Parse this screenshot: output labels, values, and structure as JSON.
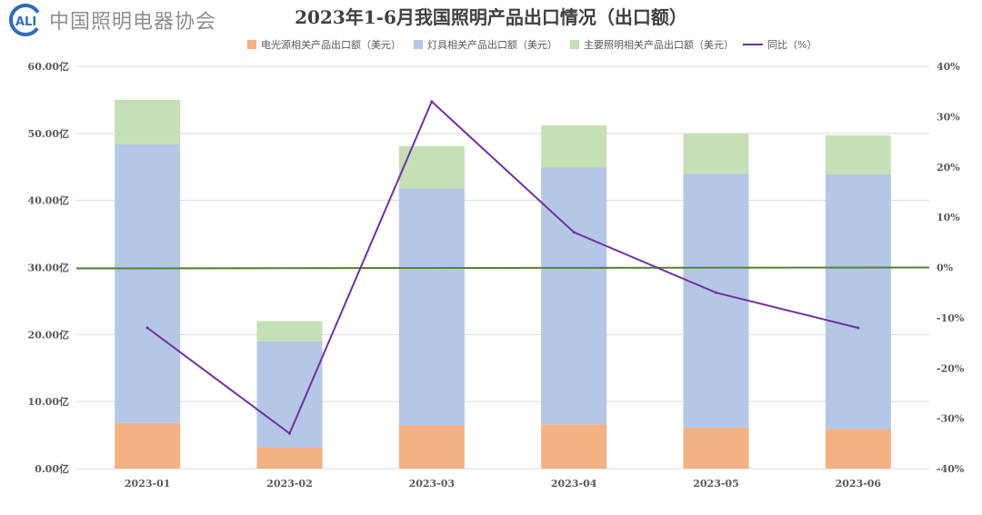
{
  "logo": {
    "mark": "CALI",
    "org_name": "中国照明电器协会"
  },
  "colors": {
    "light_source": "#f4b183",
    "luminaire": "#b4c7e7",
    "lighting_product": "#c5e0b4",
    "yoy_line": "#7030a0",
    "zero_line": "#548235",
    "grid": "#d9d9d9",
    "axis_text": "#595959",
    "title_text": "#404040"
  },
  "chart_data": {
    "type": "bar",
    "stacked": true,
    "title": "2023年1-6月我国照明产品出口情况（出口额）",
    "categories": [
      "2023-01",
      "2023-02",
      "2023-03",
      "2023-04",
      "2023-05",
      "2023-06"
    ],
    "series": [
      {
        "name": "电光源相关产品出口额（美元）",
        "type": "bar",
        "axis": "left",
        "color_key": "light_source",
        "values": [
          6.8,
          3.2,
          6.5,
          6.6,
          6.1,
          5.9
        ]
      },
      {
        "name": "灯具相关产品出口额（美元）",
        "type": "bar",
        "axis": "left",
        "color_key": "luminaire",
        "values": [
          41.6,
          15.8,
          35.3,
          38.3,
          37.9,
          38.0
        ]
      },
      {
        "name": "主要照明相关产品出口额（美元）",
        "type": "bar",
        "axis": "left",
        "color_key": "lighting_product",
        "values": [
          6.6,
          3.0,
          6.3,
          6.3,
          6.0,
          5.8
        ]
      },
      {
        "name": "同比（%）",
        "type": "line",
        "axis": "right",
        "color_key": "yoy_line",
        "values": [
          -12,
          -33,
          33,
          7,
          -5,
          -12
        ]
      }
    ],
    "left_axis": {
      "min": 0,
      "max": 60,
      "step": 10,
      "tick_labels": [
        "0.00亿",
        "10.00亿",
        "20.00亿",
        "30.00亿",
        "40.00亿",
        "50.00亿",
        "60.00亿"
      ]
    },
    "right_axis": {
      "min": -40,
      "max": 40,
      "step": 10,
      "tick_labels": [
        "-40%",
        "-30%",
        "-20%",
        "-10%",
        "0%",
        "10%",
        "20%",
        "30%",
        "40%"
      ]
    },
    "grid": true,
    "legend_position": "top"
  }
}
